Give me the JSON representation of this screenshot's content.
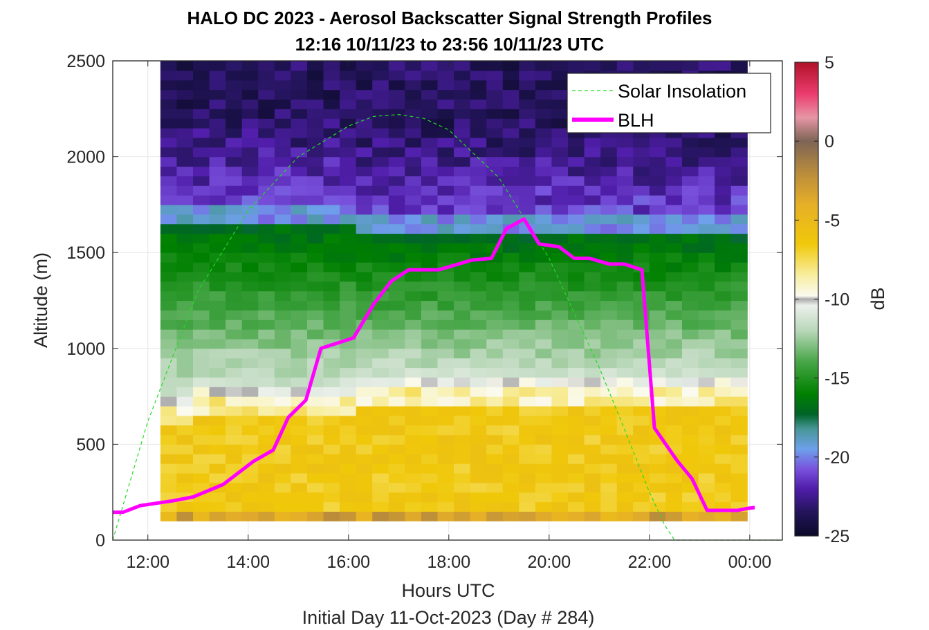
{
  "chart_data": {
    "type": "heatmap",
    "title": "HALO DC 2023 - Aerosol Backscatter Signal Strength Profiles",
    "subtitle": "12:16 10/11/23 to 23:56 10/11/23  UTC",
    "xlabel": "Hours UTC",
    "xlabel2": "Initial Day 11-Oct-2023 (Day # 284)",
    "ylabel": "Altitude (m)",
    "colorbar_label": "dB",
    "xlim": [
      11.3,
      24.65
    ],
    "ylim": [
      0,
      2500
    ],
    "x_ticks": [
      12,
      14,
      16,
      18,
      20,
      22,
      24
    ],
    "x_tick_labels": [
      "12:00",
      "14:00",
      "16:00",
      "18:00",
      "20:00",
      "22:00",
      "00:00"
    ],
    "y_ticks": [
      0,
      500,
      1000,
      1500,
      2000,
      2500
    ],
    "y_tick_labels": [
      "0",
      "500",
      "1000",
      "1500",
      "2000",
      "2500"
    ],
    "colorbar_range": [
      -25,
      5
    ],
    "colorbar_ticks": [
      5,
      0,
      -5,
      -10,
      -15,
      -20,
      -25
    ],
    "colorbar_tick_labels": [
      "5",
      "0",
      "-5",
      "-10",
      "-15",
      "-20",
      "-25"
    ],
    "grid": true,
    "legend_position": "top-right",
    "heatmap": {
      "x_start": 12.25,
      "x_end": 23.95,
      "y_bottom": 100,
      "y_top": 2500,
      "mixed_layer_top": [
        1650,
        1650,
        1650,
        1650,
        1650,
        1650,
        1650,
        1650,
        1650,
        1650,
        1650,
        1650,
        1600,
        1600,
        1600,
        1600,
        1600,
        1600,
        1600,
        1600,
        1600,
        1600,
        1600,
        1600,
        1600,
        1600,
        1600,
        1600,
        1600,
        1600,
        1600,
        1600,
        1600,
        1600,
        1600,
        1600
      ],
      "aerosol_layer_top": [
        700,
        700,
        750,
        750,
        750,
        750,
        750,
        750,
        750,
        750,
        750,
        750,
        800,
        800,
        800,
        800,
        800,
        800,
        800,
        800,
        800,
        800,
        800,
        800,
        800,
        800,
        800,
        800,
        800,
        800,
        800,
        800,
        800,
        800,
        800,
        800
      ]
    },
    "series": [
      {
        "name": "Solar Insolation",
        "color": "#22dd22",
        "style": "dashed",
        "x": [
          11.3,
          12.0,
          13.0,
          14.0,
          15.0,
          16.0,
          16.5,
          17.0,
          17.5,
          18.0,
          19.0,
          20.0,
          21.0,
          21.5,
          22.0,
          22.3,
          22.5,
          24.65
        ],
        "y": [
          0,
          620,
          1300,
          1720,
          2000,
          2160,
          2210,
          2220,
          2200,
          2140,
          1890,
          1470,
          900,
          580,
          250,
          80,
          0,
          0
        ]
      },
      {
        "name": "BLH",
        "color": "#ff00ff",
        "style": "solid",
        "x": [
          11.3,
          11.5,
          11.85,
          12.5,
          12.9,
          13.5,
          14.1,
          14.5,
          14.8,
          15.15,
          15.45,
          16.1,
          16.5,
          16.85,
          17.2,
          17.8,
          18.45,
          18.85,
          19.15,
          19.5,
          19.8,
          20.2,
          20.5,
          20.8,
          21.2,
          21.5,
          21.85,
          22.1,
          22.55,
          22.85,
          23.15,
          23.75,
          23.95,
          24.1,
          24.5,
          24.65
        ],
        "y": [
          145,
          145,
          180,
          205,
          225,
          290,
          410,
          470,
          640,
          730,
          1000,
          1055,
          1230,
          1350,
          1410,
          1410,
          1460,
          1470,
          1625,
          1675,
          1545,
          1530,
          1470,
          1470,
          1440,
          1440,
          1410,
          585,
          415,
          320,
          155,
          155,
          165,
          170,
          null,
          160
        ]
      }
    ]
  },
  "colors": {
    "axis": "#262626",
    "grid": "#e6e6e6",
    "blh": "#ff00ff",
    "solar": "#22dd22"
  }
}
